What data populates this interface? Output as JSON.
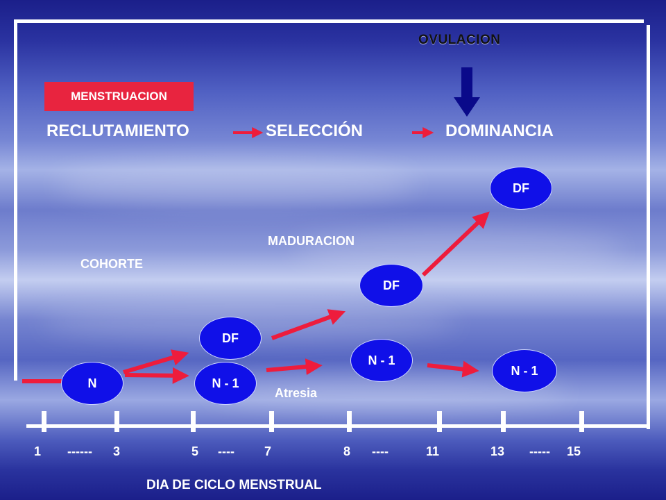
{
  "labels": {
    "ovulacion": "OVULACION",
    "menstruacion": "MENSTRUACION",
    "reclutamiento": "RECLUTAMIENTO",
    "seleccion": "SELECCIÓN",
    "dominancia": "DOMINANCIA",
    "maduracion": "MADURACION",
    "cohorte": "COHORTE",
    "atresia": "Atresia",
    "axis_title": "DIA DE CICLO MENSTRUAL"
  },
  "nodes": {
    "n": "N",
    "n1_a": "N - 1",
    "df_a": "DF",
    "n1_b": "N - 1",
    "df_b": "DF",
    "n1_c": "N - 1",
    "df_c": "DF"
  },
  "axis_ticks": {
    "t1": "1",
    "d1": "------",
    "t3": "3",
    "t5": "5",
    "d2": "----",
    "t7": "7",
    "t8": "8",
    "d3": "----",
    "t11": "11",
    "t13": "13",
    "d4": "-----",
    "t15": "15"
  },
  "colors": {
    "menstruacion_bg": "#e8243f",
    "node_fill": "#1010e8",
    "arrow_red": "#ee1c3c",
    "ovulation_arrow": "#0a0a8a"
  }
}
